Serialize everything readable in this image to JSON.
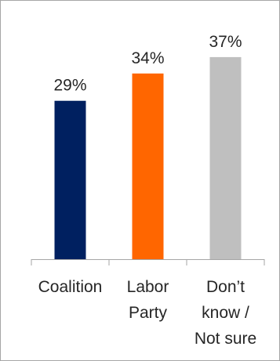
{
  "chart_data": {
    "type": "bar",
    "categories": [
      [
        "Coalition"
      ],
      [
        "Labor",
        "Party"
      ],
      [
        "Don’t",
        "know /",
        "Not sure"
      ]
    ],
    "values": [
      29,
      34,
      37
    ],
    "value_labels": [
      "29%",
      "34%",
      "37%"
    ],
    "colors": [
      "#002060",
      "#ff6600",
      "#bfbfbf"
    ],
    "ylim": [
      0,
      40
    ],
    "grid": false,
    "legend": "none",
    "title": "",
    "xlabel": "",
    "ylabel": ""
  }
}
